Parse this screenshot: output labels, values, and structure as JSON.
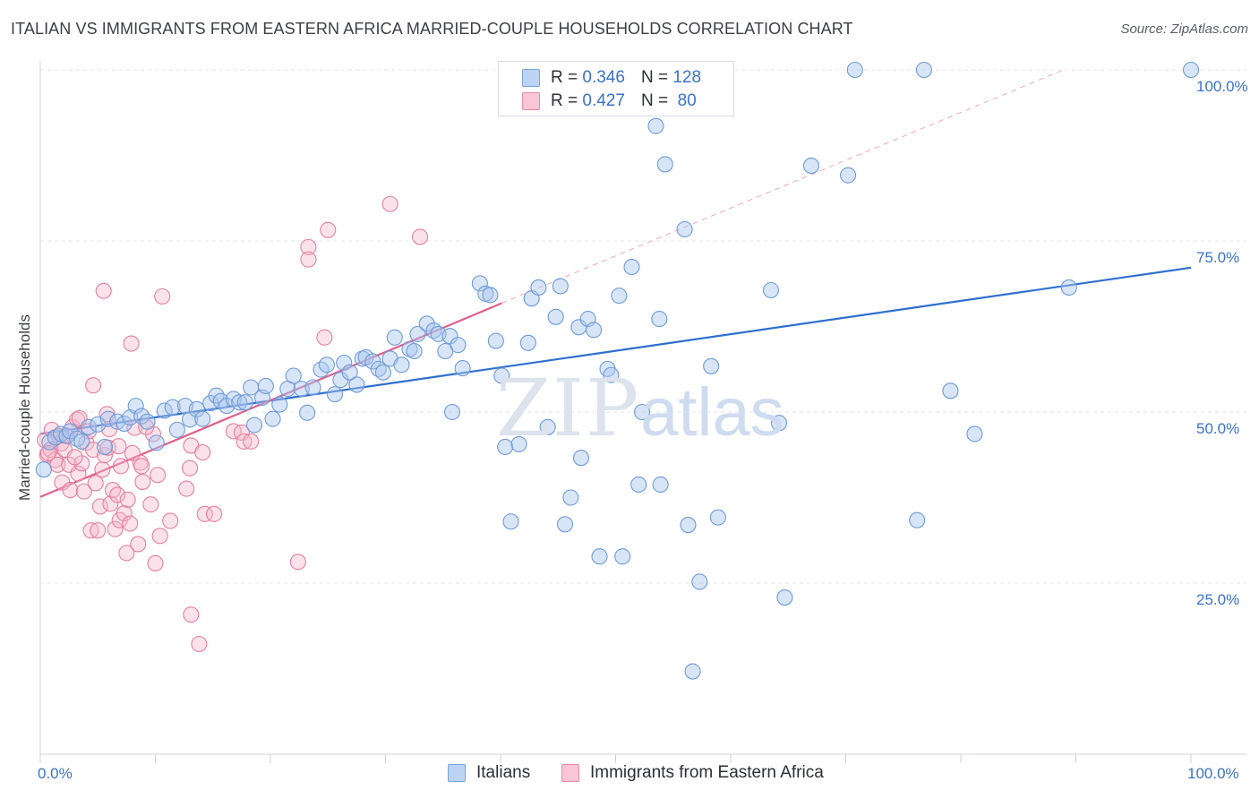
{
  "title": "ITALIAN VS IMMIGRANTS FROM EASTERN AFRICA MARRIED-COUPLE HOUSEHOLDS CORRELATION CHART",
  "source": "Source: ZipAtlas.com",
  "watermark": {
    "zip": "ZIP",
    "atlas": "atlas"
  },
  "legend": {
    "r_label": "R =",
    "n_label": "N =",
    "items": [
      {
        "r": "0.346",
        "n": "128"
      },
      {
        "r": "0.427",
        "n": "80"
      }
    ]
  },
  "colors": {
    "blue_fill": "#a9c5ee",
    "blue_stroke": "#6f9bd8",
    "blue_line": "#2f6fd0",
    "pink_fill": "#f6b7cb",
    "pink_stroke": "#e6809f",
    "pink_line": "#e0608c",
    "grid": "#e3e6ea",
    "axis_text": "#3a72cc"
  },
  "chart_data": {
    "type": "scatter",
    "title": "ITALIAN VS IMMIGRANTS FROM EASTERN AFRICA MARRIED-COUPLE HOUSEHOLDS CORRELATION CHART",
    "xlabel": "",
    "ylabel": "Married-couple Households",
    "xlim": [
      0,
      100
    ],
    "ylim": [
      0,
      100
    ],
    "x_tick_labels": [
      "0.0%",
      "100.0%"
    ],
    "y_tick_labels": [
      "100.0%",
      "75.0%",
      "50.0%",
      "25.0%"
    ],
    "y_tick_values": [
      100,
      75,
      50,
      25
    ],
    "grid": true,
    "legend_position": "top-center",
    "series": [
      {
        "name": "Italians",
        "r": 0.346,
        "n": 128,
        "trend": {
          "x": [
            0,
            100
          ],
          "y": [
            46.8,
            71.1
          ]
        },
        "points": [
          [
            0.3,
            41.6
          ],
          [
            0.8,
            45.6
          ],
          [
            1.3,
            46.3
          ],
          [
            1.8,
            46.8
          ],
          [
            2.3,
            46.5
          ],
          [
            2.6,
            47.2
          ],
          [
            3.2,
            46.1
          ],
          [
            3.6,
            45.7
          ],
          [
            4.2,
            47.8
          ],
          [
            5.0,
            48.2
          ],
          [
            5.6,
            44.9
          ],
          [
            5.9,
            49.0
          ],
          [
            6.7,
            48.6
          ],
          [
            7.3,
            48.3
          ],
          [
            7.8,
            49.2
          ],
          [
            8.3,
            50.9
          ],
          [
            8.8,
            49.4
          ],
          [
            9.3,
            48.6
          ],
          [
            10.1,
            45.5
          ],
          [
            10.8,
            50.2
          ],
          [
            11.5,
            50.7
          ],
          [
            11.9,
            47.4
          ],
          [
            12.6,
            50.9
          ],
          [
            13.0,
            48.9
          ],
          [
            13.6,
            50.4
          ],
          [
            14.1,
            49.0
          ],
          [
            14.8,
            51.3
          ],
          [
            15.3,
            52.4
          ],
          [
            15.7,
            51.6
          ],
          [
            16.2,
            50.9
          ],
          [
            16.8,
            51.9
          ],
          [
            17.3,
            51.4
          ],
          [
            17.8,
            51.4
          ],
          [
            18.3,
            53.6
          ],
          [
            18.6,
            48.1
          ],
          [
            19.3,
            52.1
          ],
          [
            19.6,
            53.8
          ],
          [
            20.2,
            49.0
          ],
          [
            20.8,
            51.1
          ],
          [
            21.5,
            53.4
          ],
          [
            22.0,
            55.3
          ],
          [
            22.7,
            53.4
          ],
          [
            23.2,
            49.9
          ],
          [
            23.7,
            53.6
          ],
          [
            24.4,
            56.2
          ],
          [
            24.9,
            56.9
          ],
          [
            25.6,
            52.6
          ],
          [
            26.1,
            54.7
          ],
          [
            26.4,
            57.2
          ],
          [
            26.9,
            55.8
          ],
          [
            27.5,
            54.0
          ],
          [
            28.0,
            57.8
          ],
          [
            28.3,
            58.0
          ],
          [
            28.9,
            57.4
          ],
          [
            29.4,
            56.3
          ],
          [
            29.8,
            55.8
          ],
          [
            30.4,
            57.8
          ],
          [
            30.8,
            60.9
          ],
          [
            31.4,
            56.9
          ],
          [
            32.1,
            59.2
          ],
          [
            32.5,
            58.9
          ],
          [
            32.8,
            61.4
          ],
          [
            33.6,
            62.9
          ],
          [
            34.2,
            61.9
          ],
          [
            34.6,
            61.4
          ],
          [
            35.2,
            58.9
          ],
          [
            35.6,
            61.1
          ],
          [
            36.3,
            59.8
          ],
          [
            36.7,
            56.4
          ],
          [
            35.8,
            50.0
          ],
          [
            38.2,
            68.8
          ],
          [
            38.7,
            67.3
          ],
          [
            39.1,
            67.1
          ],
          [
            39.6,
            60.4
          ],
          [
            40.1,
            55.3
          ],
          [
            40.4,
            44.9
          ],
          [
            40.9,
            34.0
          ],
          [
            41.6,
            45.3
          ],
          [
            42.4,
            60.1
          ],
          [
            42.7,
            66.6
          ],
          [
            43.3,
            68.2
          ],
          [
            44.1,
            47.8
          ],
          [
            44.8,
            63.9
          ],
          [
            45.2,
            68.4
          ],
          [
            45.6,
            33.6
          ],
          [
            46.1,
            37.5
          ],
          [
            46.8,
            62.4
          ],
          [
            47.0,
            43.3
          ],
          [
            47.6,
            63.6
          ],
          [
            48.1,
            62.0
          ],
          [
            48.6,
            28.9
          ],
          [
            49.3,
            56.3
          ],
          [
            49.6,
            55.4
          ],
          [
            50.3,
            67.0
          ],
          [
            50.6,
            28.9
          ],
          [
            51.4,
            71.2
          ],
          [
            52.0,
            39.4
          ],
          [
            52.3,
            50.0
          ],
          [
            53.5,
            91.8
          ],
          [
            53.8,
            63.6
          ],
          [
            53.9,
            39.4
          ],
          [
            54.3,
            86.2
          ],
          [
            54.6,
            100.0
          ],
          [
            56.0,
            76.7
          ],
          [
            56.3,
            33.5
          ],
          [
            56.7,
            12.1
          ],
          [
            57.3,
            25.2
          ],
          [
            58.3,
            56.7
          ],
          [
            58.9,
            34.6
          ],
          [
            63.5,
            67.8
          ],
          [
            64.2,
            48.4
          ],
          [
            64.7,
            22.9
          ],
          [
            67.0,
            86.0
          ],
          [
            70.2,
            84.6
          ],
          [
            70.8,
            100.0
          ],
          [
            76.8,
            100.0
          ],
          [
            76.2,
            34.2
          ],
          [
            79.1,
            53.1
          ],
          [
            81.2,
            46.8
          ],
          [
            89.4,
            68.2
          ],
          [
            100.0,
            100.0
          ]
        ]
      },
      {
        "name": "Immigrants from Eastern Africa",
        "r": 0.427,
        "n": 80,
        "trend": {
          "x": [
            0,
            40.1
          ],
          "y": [
            37.6,
            65.9
          ]
        },
        "trend_extension": {
          "x": [
            40.1,
            88.9
          ],
          "y": [
            65.9,
            100.0
          ]
        },
        "points": [
          [
            0.4,
            45.9
          ],
          [
            0.6,
            43.8
          ],
          [
            0.9,
            44.5
          ],
          [
            1.0,
            47.4
          ],
          [
            1.3,
            43.0
          ],
          [
            1.5,
            42.3
          ],
          [
            1.8,
            45.4
          ],
          [
            1.9,
            39.7
          ],
          [
            2.2,
            46.6
          ],
          [
            2.5,
            42.3
          ],
          [
            2.6,
            38.6
          ],
          [
            2.8,
            47.8
          ],
          [
            3.2,
            48.9
          ],
          [
            3.3,
            41.0
          ],
          [
            3.4,
            49.1
          ],
          [
            3.6,
            42.5
          ],
          [
            3.8,
            38.4
          ],
          [
            4.0,
            45.5
          ],
          [
            4.2,
            47.2
          ],
          [
            4.4,
            32.7
          ],
          [
            4.6,
            44.5
          ],
          [
            4.6,
            53.9
          ],
          [
            4.8,
            39.6
          ],
          [
            5.0,
            32.7
          ],
          [
            5.2,
            36.2
          ],
          [
            5.4,
            41.6
          ],
          [
            5.5,
            67.7
          ],
          [
            5.6,
            43.7
          ],
          [
            5.8,
            49.7
          ],
          [
            5.9,
            44.8
          ],
          [
            6.1,
            36.6
          ],
          [
            6.3,
            38.6
          ],
          [
            6.5,
            32.9
          ],
          [
            6.7,
            37.9
          ],
          [
            6.8,
            45.0
          ],
          [
            6.9,
            34.2
          ],
          [
            7.0,
            42.1
          ],
          [
            7.3,
            35.2
          ],
          [
            7.5,
            29.4
          ],
          [
            7.6,
            37.2
          ],
          [
            7.8,
            33.7
          ],
          [
            7.9,
            60.0
          ],
          [
            8.0,
            44.0
          ],
          [
            8.2,
            47.7
          ],
          [
            8.5,
            30.7
          ],
          [
            8.7,
            42.6
          ],
          [
            8.8,
            42.1
          ],
          [
            8.9,
            39.8
          ],
          [
            9.6,
            36.5
          ],
          [
            9.8,
            46.8
          ],
          [
            10.0,
            27.9
          ],
          [
            10.2,
            40.8
          ],
          [
            10.4,
            31.9
          ],
          [
            10.6,
            66.9
          ],
          [
            11.3,
            34.1
          ],
          [
            12.7,
            38.8
          ],
          [
            13.0,
            41.8
          ],
          [
            13.1,
            45.1
          ],
          [
            13.1,
            20.4
          ],
          [
            13.8,
            16.1
          ],
          [
            14.1,
            44.1
          ],
          [
            14.3,
            35.1
          ],
          [
            15.1,
            35.1
          ],
          [
            16.8,
            47.2
          ],
          [
            17.5,
            47.0
          ],
          [
            17.7,
            45.7
          ],
          [
            18.3,
            45.7
          ],
          [
            22.4,
            28.1
          ],
          [
            23.3,
            74.1
          ],
          [
            23.3,
            72.3
          ],
          [
            24.7,
            60.9
          ],
          [
            25.0,
            76.6
          ],
          [
            30.4,
            80.4
          ],
          [
            33.0,
            75.6
          ],
          [
            0.7,
            44.0
          ],
          [
            2.1,
            44.5
          ],
          [
            3.0,
            43.4
          ],
          [
            6.0,
            47.5
          ],
          [
            9.2,
            47.8
          ],
          [
            1.6,
            46.5
          ]
        ]
      }
    ]
  }
}
